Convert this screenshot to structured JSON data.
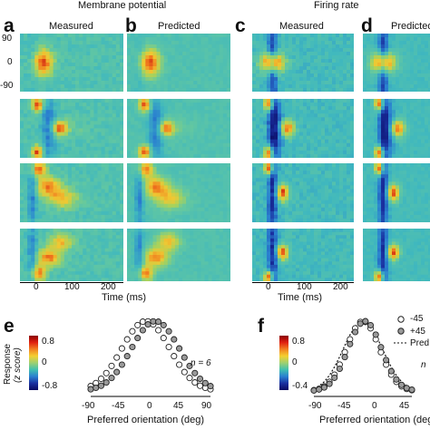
{
  "headers": {
    "left": "Membrane potential",
    "right": "Firing rate"
  },
  "letters": [
    "a",
    "b",
    "c",
    "d",
    "e",
    "f"
  ],
  "subtitles": {
    "a": "Measured",
    "b": "Predicted",
    "c": "Measured",
    "d": "Predicted"
  },
  "y_ticks": [
    "90",
    "0",
    "-90"
  ],
  "time_axis": {
    "ticks": [
      "0",
      "100",
      "200"
    ],
    "label": "Time (ms)"
  },
  "colorbar_e": {
    "label_line1": "Response",
    "label_line2": "(z score)",
    "ticks": [
      "0.8",
      "0",
      "-0.8"
    ]
  },
  "colorbar_f": {
    "ticks": [
      "0.8",
      "0",
      "-0.4"
    ]
  },
  "panel_e": {
    "n_label": "n = 6",
    "x_ticks": [
      "-90",
      "-45",
      "0",
      "45",
      "90"
    ],
    "xlabel": "Preferred orientation (deg)"
  },
  "panel_f": {
    "legend": [
      "-45",
      "+45",
      "Pred"
    ],
    "n_label": "n",
    "x_ticks": [
      "-90",
      "-45",
      "0",
      "45"
    ],
    "xlabel": "Preferred orientation (deg)"
  },
  "colors": {
    "map_low": "#1a2f9c",
    "map_mid": "#4fb8c8",
    "map_high": "#d81c10"
  }
}
